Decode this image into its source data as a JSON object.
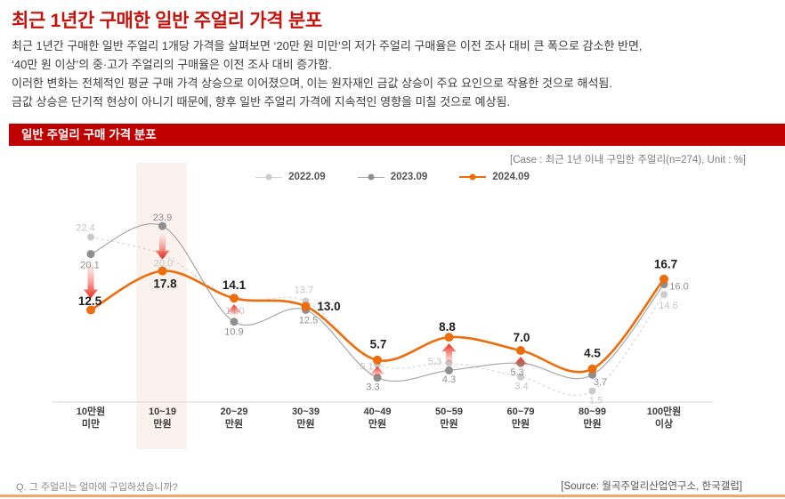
{
  "page": {
    "title": "최근 1년간 구매한 일반 주얼리 가격 분포",
    "paragraph": [
      "최근 1년간 구매한 일반 주얼리 1개당 가격을 살펴보면 ‘20만 원 미만’의 저가 주얼리 구매율은 이전 조사 대비 큰 폭으로 감소한 반면,",
      "‘40만 원 이상’의 중·고가 주얼리의 구매율은 이전 조사 대비 증가함.",
      "이러한 변화는 전체적인 평균 구매 가격 상승으로 이어졌으며, 이는 원자재인 금값 상승이 주요 요인으로 작용한 것으로 해석됨.",
      "금값 상승은 단기적 현상이 아니기 때문에, 향후 일반 주얼리 가격에 지속적인 영향을 미칠 것으로 예상됨."
    ],
    "section_title": "일반 주얼리 구매 가격 분포",
    "case_note": "[Case : 최근 1년 이내 구입한 주얼리(n=274), Unit : %]",
    "footer_question": "Q. 그 주얼리는 얼마에 구입하셨습니까?",
    "footer_source": "[Source: 월곡주얼리산업연구소, 한국갤럽]"
  },
  "colors": {
    "title_red": "#c5130c",
    "banner_bg": "#c00000",
    "banner_text": "#ffffff",
    "highlight_band": "#fbf1ed",
    "axis_line": "#d9d9d9",
    "arrow_red": "#ef2f1f",
    "bottom_bar": "#efa96e",
    "emphasis_label": "#1f1f1f"
  },
  "chart_data": {
    "type": "line",
    "title": "일반 주얼리 구매 가격 분포",
    "unit": "%",
    "case_note": "[Case : 최근 1년 이내 구입한 주얼리(n=274), Unit : %]",
    "categories": [
      [
        "10만원",
        "미만"
      ],
      [
        "10~19",
        "만원"
      ],
      [
        "20~29",
        "만원"
      ],
      [
        "30~39",
        "만원"
      ],
      [
        "40~49",
        "만원"
      ],
      [
        "50~59",
        "만원"
      ],
      [
        "60~79",
        "만원"
      ],
      [
        "80~99",
        "만원"
      ],
      [
        "100만원",
        "이상"
      ]
    ],
    "series": [
      {
        "name": "2022.09",
        "color": "#d2d2d2",
        "dot_color": "#cbcbcb",
        "label_color": "#c6c6c6",
        "dashed": true,
        "values": [
          22.4,
          20.0,
          14.0,
          13.7,
          5.1,
          5.3,
          3.4,
          1.5,
          14.6
        ]
      },
      {
        "name": "2023.09",
        "color": "#a8a8a8",
        "dot_color": "#8f8f8f",
        "label_color": "#8f8f8f",
        "dashed": false,
        "values": [
          20.1,
          23.9,
          10.9,
          12.5,
          3.3,
          4.3,
          5.3,
          3.7,
          16.0
        ]
      },
      {
        "name": "2024.09",
        "color": "#ed6c0b",
        "dot_color": "#ed6c0b",
        "label_color": "#1f1f1f",
        "dashed": false,
        "emphasis": true,
        "values": [
          12.5,
          17.8,
          14.1,
          13.0,
          5.7,
          8.8,
          7.0,
          4.5,
          16.7
        ]
      }
    ],
    "highlight_category_index": 1,
    "change_arrows": [
      {
        "category_index": 0,
        "direction": "down"
      },
      {
        "category_index": 1,
        "direction": "down"
      },
      {
        "category_index": 2,
        "direction": "up"
      },
      {
        "category_index": 4,
        "direction": "up"
      },
      {
        "category_index": 5,
        "direction": "up"
      },
      {
        "category_index": 6,
        "direction": "up"
      }
    ],
    "ylim": [
      0,
      26
    ],
    "legend_position": "top-center",
    "grid": false
  }
}
